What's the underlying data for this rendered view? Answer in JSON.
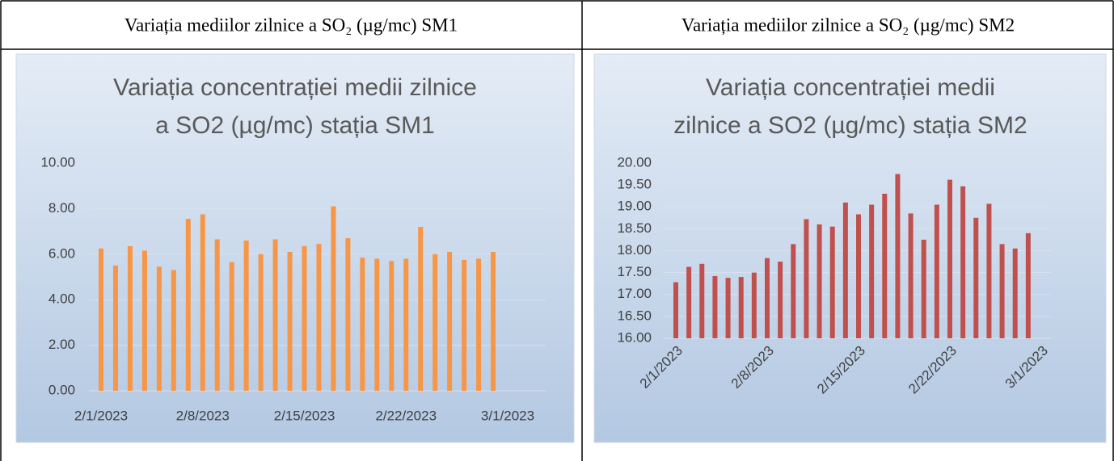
{
  "table": {
    "header": [
      "Variația mediilor zilnice a SO₂ (µg/mc) SM1",
      "Variația mediilor zilnice a SO₂ (µg/mc) SM2"
    ]
  },
  "chart_data": [
    {
      "type": "bar",
      "title": [
        "Variația concentrației medii zilnice",
        "a SO2 (µg/mc) stația SM1"
      ],
      "color": "#f79646",
      "x": [
        "2023-02-01",
        "2023-02-02",
        "2023-02-03",
        "2023-02-04",
        "2023-02-05",
        "2023-02-06",
        "2023-02-07",
        "2023-02-08",
        "2023-02-09",
        "2023-02-10",
        "2023-02-11",
        "2023-02-12",
        "2023-02-13",
        "2023-02-14",
        "2023-02-15",
        "2023-02-16",
        "2023-02-17",
        "2023-02-18",
        "2023-02-19",
        "2023-02-20",
        "2023-02-21",
        "2023-02-22",
        "2023-02-23",
        "2023-02-24",
        "2023-02-25",
        "2023-02-26",
        "2023-02-27",
        "2023-02-28"
      ],
      "values": [
        6.25,
        5.5,
        6.35,
        6.15,
        5.45,
        5.3,
        7.55,
        7.75,
        6.65,
        5.65,
        6.6,
        6.0,
        6.65,
        6.1,
        6.35,
        6.45,
        8.1,
        6.7,
        5.85,
        5.8,
        5.7,
        5.8,
        7.2,
        6.0,
        6.1,
        5.75,
        5.8,
        6.1
      ],
      "xlim": [
        "2023-02-01",
        "2023-03-01"
      ],
      "xticks": [
        {
          "value": "2023-02-01",
          "label": "2/1/2023"
        },
        {
          "value": "2023-02-08",
          "label": "2/8/2023"
        },
        {
          "value": "2023-02-15",
          "label": "2/15/2023"
        },
        {
          "value": "2023-02-22",
          "label": "2/22/2023"
        },
        {
          "value": "2023-03-01",
          "label": "3/1/2023"
        }
      ],
      "xtick_rotation": 0,
      "ylim": [
        0,
        10
      ],
      "yticks": [
        {
          "value": 0,
          "label": "0.00"
        },
        {
          "value": 2,
          "label": "2.00"
        },
        {
          "value": 4,
          "label": "4.00"
        },
        {
          "value": 6,
          "label": "6.00"
        },
        {
          "value": 8,
          "label": "8.00"
        },
        {
          "value": 10,
          "label": "10.00"
        }
      ],
      "grid": true
    },
    {
      "type": "bar",
      "title": [
        "Variația concentrației medii",
        "zilnice a SO2 (µg/mc) stația SM2"
      ],
      "color": "#c0504d",
      "x": [
        "2023-02-01",
        "2023-02-02",
        "2023-02-03",
        "2023-02-04",
        "2023-02-05",
        "2023-02-06",
        "2023-02-07",
        "2023-02-08",
        "2023-02-09",
        "2023-02-10",
        "2023-02-11",
        "2023-02-12",
        "2023-02-13",
        "2023-02-14",
        "2023-02-15",
        "2023-02-16",
        "2023-02-17",
        "2023-02-18",
        "2023-02-19",
        "2023-02-20",
        "2023-02-21",
        "2023-02-22",
        "2023-02-23",
        "2023-02-24",
        "2023-02-25",
        "2023-02-26",
        "2023-02-27",
        "2023-02-28"
      ],
      "values": [
        17.28,
        17.63,
        17.7,
        17.42,
        17.38,
        17.4,
        17.5,
        17.83,
        17.75,
        18.15,
        18.72,
        18.6,
        18.55,
        19.1,
        18.83,
        19.05,
        19.3,
        19.75,
        18.85,
        18.25,
        19.05,
        19.62,
        19.47,
        18.75,
        19.07,
        18.15,
        18.05,
        18.4
      ],
      "xlim": [
        "2023-02-01",
        "2023-03-01"
      ],
      "xticks": [
        {
          "value": "2023-02-01",
          "label": "2/1/2023"
        },
        {
          "value": "2023-02-08",
          "label": "2/8/2023"
        },
        {
          "value": "2023-02-15",
          "label": "2/15/2023"
        },
        {
          "value": "2023-02-22",
          "label": "2/22/2023"
        },
        {
          "value": "2023-03-01",
          "label": "3/1/2023"
        }
      ],
      "xtick_rotation": -45,
      "ylim": [
        16,
        20
      ],
      "yticks": [
        {
          "value": 16,
          "label": "16.00"
        },
        {
          "value": 16.5,
          "label": "16.50"
        },
        {
          "value": 17,
          "label": "17.00"
        },
        {
          "value": 17.5,
          "label": "17.50"
        },
        {
          "value": 18,
          "label": "18.00"
        },
        {
          "value": 18.5,
          "label": "18.50"
        },
        {
          "value": 19,
          "label": "19.00"
        },
        {
          "value": 19.5,
          "label": "19.50"
        },
        {
          "value": 20,
          "label": "20.00"
        }
      ],
      "grid": true
    }
  ]
}
